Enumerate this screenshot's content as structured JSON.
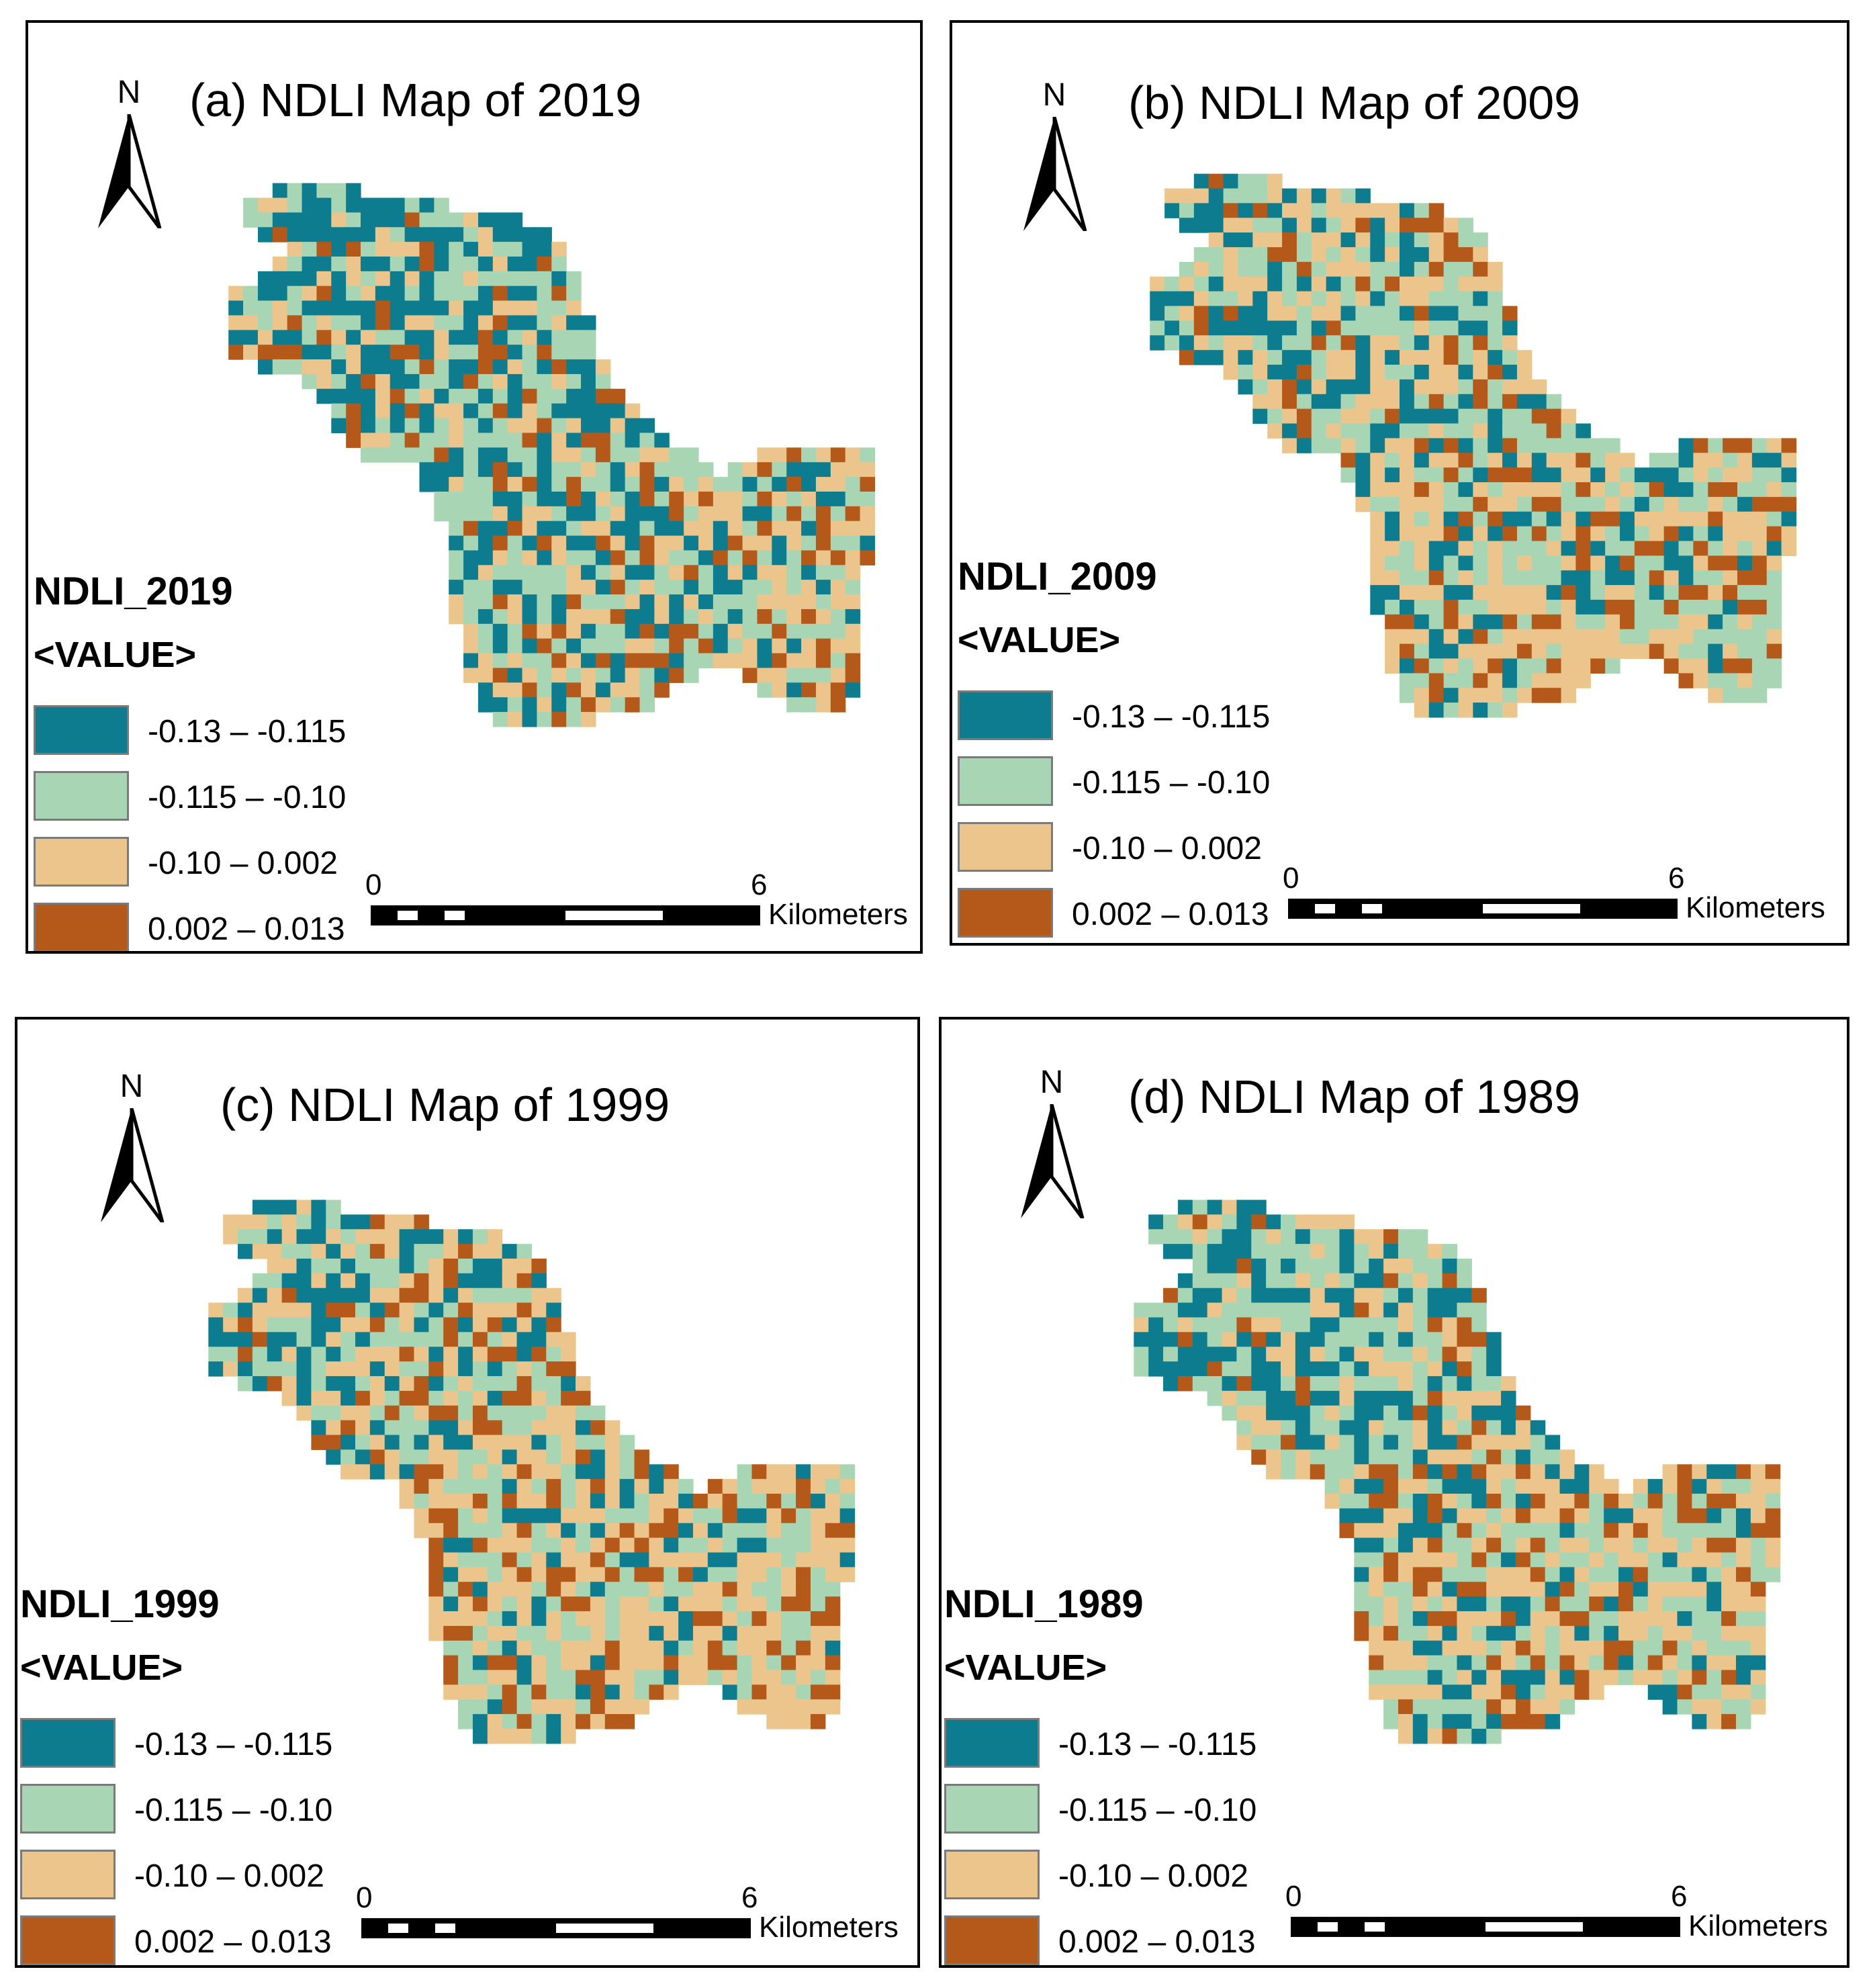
{
  "colors": {
    "class1": "#0d7c8f",
    "class2": "#a8d6b4",
    "class3": "#ecc58d",
    "class4": "#b5591a"
  },
  "panels": [
    {
      "title": "(a) NDLI Map of 2019",
      "north_label": "N",
      "legend_title": "NDLI_2019",
      "legend_subtitle": "<VALUE>",
      "legend_items": [
        "-0.13 –  -0.115",
        "-0.115 –  -0.10",
        "-0.10 –  0.002",
        "0.002 –  0.013"
      ],
      "scale_start": "0",
      "scale_end": "6",
      "scale_unit": "Kilometers"
    },
    {
      "title": "(b) NDLI Map of  2009",
      "north_label": "N",
      "legend_title": "NDLI_2009",
      "legend_subtitle": "<VALUE>",
      "legend_items": [
        "-0.13 – -0.115",
        "-0.115 – -0.10",
        "-0.10 – 0.002",
        "0.002 – 0.013"
      ],
      "scale_start": "0",
      "scale_end": "6",
      "scale_unit": "Kilometers"
    },
    {
      "title": "(c) NDLI Map of 1999",
      "north_label": "N",
      "legend_title": "NDLI_1999",
      "legend_subtitle": "<VALUE>",
      "legend_items": [
        "-0.13 – -0.115",
        "-0.115  – -0.10",
        "-0.10 – 0.002",
        "0.002 – 0.013"
      ],
      "scale_start": "0",
      "scale_end": "6",
      "scale_unit": "Kilometers"
    },
    {
      "title": "(d) NDLI Map of 1989",
      "north_label": "N",
      "legend_title": "NDLI_1989",
      "legend_subtitle": "<VALUE>",
      "legend_items": [
        "-0.13 –  -0.115",
        "-0.115 –  -0.10",
        "-0.10 –  0.002",
        "0.002 – 0.013"
      ],
      "scale_start": "0",
      "scale_end": "6",
      "scale_unit": "Kilometers"
    }
  ]
}
